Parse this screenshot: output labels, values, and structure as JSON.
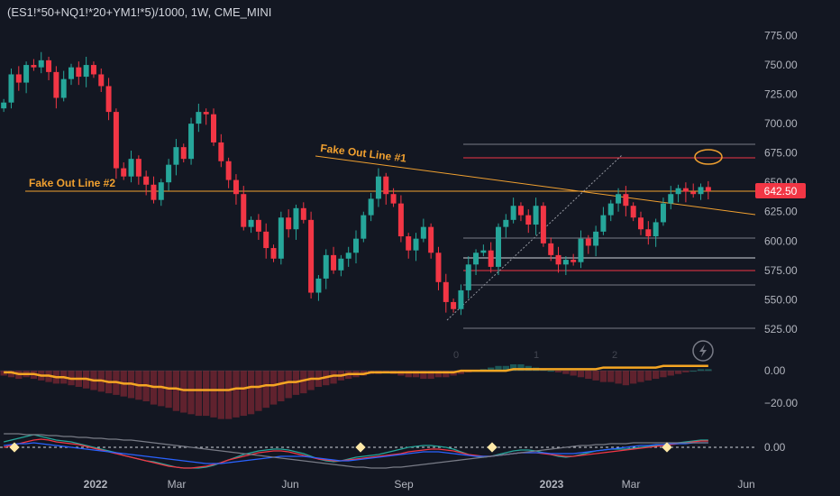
{
  "header": {
    "title": "(ES1!*50+NQ1!*20+YM1!*5)/1000, 1W, CME_MINI"
  },
  "colors": {
    "up": "#26a69a",
    "down": "#f23645",
    "bg": "#131722",
    "annot": "#f0a030",
    "axis": "#b2b5be",
    "price_badge": "#f23645"
  },
  "chart_data": [
    {
      "type": "candlestick",
      "title": "(ES1!*50+NQ1!*20+YM1!*5)/1000, 1W, CME_MINI",
      "yticks": [
        525,
        550,
        575,
        600,
        625,
        650,
        675,
        700,
        725,
        750,
        775
      ],
      "ytick_labels": [
        "525.00",
        "550.00",
        "575.00",
        "600.00",
        "625.00",
        "650.00",
        "675.00",
        "700.00",
        "725.00",
        "750.00",
        "775.00"
      ],
      "ylim": [
        498,
        790
      ],
      "xticks": [
        "2022",
        "Mar",
        "Jun",
        "Sep",
        "2023",
        "Mar",
        "Jun"
      ],
      "last_price": "642.50",
      "closes": [
        718,
        742,
        735,
        750,
        748,
        754,
        744,
        722,
        738,
        748,
        740,
        750,
        742,
        732,
        710,
        662,
        655,
        670,
        655,
        648,
        635,
        650,
        665,
        680,
        670,
        700,
        710,
        708,
        684,
        668,
        652,
        640,
        612,
        618,
        608,
        594,
        585,
        620,
        610,
        628,
        618,
        556,
        568,
        588,
        575,
        585,
        590,
        602,
        622,
        636,
        655,
        640,
        632,
        604,
        592,
        602,
        612,
        590,
        565,
        548,
        542,
        558,
        580,
        590,
        592,
        578,
        612,
        618,
        630,
        622,
        614,
        630,
        598,
        588,
        580,
        584,
        582,
        602,
        596,
        608,
        622,
        632,
        640,
        630,
        620,
        610,
        604,
        616,
        632,
        640,
        645,
        642,
        640,
        646,
        642.5
      ],
      "annotations": [
        "Fake Out Line #2",
        "Fake Out Line #1"
      ],
      "markers": [
        "0",
        "1",
        "2"
      ],
      "grid": false
    },
    {
      "type": "histogram",
      "yticks": [
        -20,
        0
      ],
      "ytick_labels": [
        "−20.00",
        "0.00"
      ],
      "ylim": [
        -33,
        4
      ],
      "values": [
        -3,
        -4,
        -5,
        -4,
        -5,
        -6,
        -7,
        -8,
        -8,
        -9,
        -10,
        -11,
        -12,
        -13,
        -14,
        -15,
        -16,
        -17,
        -18,
        -19,
        -21,
        -22,
        -23,
        -25,
        -26,
        -27,
        -28,
        -28,
        -29,
        -30,
        -30,
        -29,
        -28,
        -27,
        -25,
        -23,
        -21,
        -19,
        -17,
        -15,
        -14,
        -12,
        -10,
        -9,
        -8,
        -6,
        -5,
        -4,
        -3,
        -2,
        -2,
        -1,
        -2,
        -3,
        -4,
        -4,
        -5,
        -5,
        -4,
        -4,
        -3,
        -2,
        -1,
        0,
        1,
        2,
        3,
        3,
        4,
        4,
        3,
        2,
        1,
        0,
        -1,
        -2,
        -3,
        -4,
        -5,
        -6,
        -7,
        -7,
        -8,
        -9,
        -8,
        -7,
        -6,
        -5,
        -4,
        -3,
        -2,
        -1,
        0,
        1,
        1
      ],
      "signal_line": [
        -1,
        -1,
        -2,
        -2,
        -2,
        -3,
        -3,
        -4,
        -4,
        -5,
        -5,
        -5,
        -6,
        -6,
        -7,
        -7,
        -8,
        -8,
        -9,
        -9,
        -10,
        -10,
        -11,
        -11,
        -12,
        -12,
        -12,
        -12,
        -12,
        -12,
        -12,
        -11,
        -11,
        -10,
        -10,
        -9,
        -9,
        -8,
        -7,
        -7,
        -6,
        -5,
        -5,
        -4,
        -3,
        -3,
        -2,
        -2,
        -2,
        -1,
        -1,
        -1,
        -1,
        -1,
        -1,
        -1,
        -1,
        -1,
        -1,
        -1,
        -1,
        0,
        0,
        0,
        0,
        0,
        0,
        0,
        1,
        1,
        1,
        1,
        1,
        1,
        1,
        1,
        1,
        1,
        1,
        1,
        2,
        2,
        2,
        2,
        2,
        2,
        2,
        2,
        3,
        3,
        3,
        3,
        3,
        3,
        3
      ]
    },
    {
      "type": "line",
      "yticks": [
        0
      ],
      "ytick_labels": [
        "0.00"
      ],
      "ylim": [
        -2.4,
        2.4
      ],
      "series": [
        {
          "color": "#26a69a",
          "values": [
            0.6,
            0.8,
            1,
            1.2,
            1.4,
            1.2,
            1,
            0.8,
            0.7,
            0.6,
            0.4,
            0.2,
            0,
            -0.2,
            -0.4,
            -0.6,
            -0.9,
            -1.1,
            -1.3,
            -1.5,
            -1.6,
            -1.8,
            -2,
            -2.2,
            -2.3,
            -2.3,
            -2.3,
            -2.2,
            -2,
            -1.7,
            -1.4,
            -1.1,
            -0.8,
            -0.6,
            -0.4,
            -0.3,
            -0.2,
            -0.2,
            -0.3,
            -0.5,
            -0.7,
            -1,
            -1.3,
            -1.5,
            -1.6,
            -1.5,
            -1.3,
            -1.1,
            -1,
            -0.9,
            -0.8,
            -0.6,
            -0.4,
            -0.2,
            0,
            0.1,
            0.2,
            0.2,
            0.1,
            0,
            -0.2,
            -0.5,
            -0.8,
            -1,
            -1.1,
            -1,
            -0.8,
            -0.6,
            -0.4,
            -0.3,
            -0.3,
            -0.4,
            -0.6,
            -0.8,
            -1,
            -1.1,
            -1,
            -0.8,
            -0.6,
            -0.4,
            -0.3,
            -0.2,
            -0.2,
            -0.2,
            -0.1,
            0,
            0.1,
            0.2,
            0.3,
            0.4,
            0.5,
            0.6,
            0.7,
            0.8,
            0.8
          ]
        },
        {
          "color": "#f23645",
          "values": [
            0,
            0.2,
            0.4,
            0.6,
            0.8,
            0.9,
            0.8,
            0.6,
            0.5,
            0.4,
            0.3,
            0.1,
            -0.1,
            -0.3,
            -0.5,
            -0.7,
            -0.9,
            -1.1,
            -1.3,
            -1.5,
            -1.7,
            -1.9,
            -2.1,
            -2.2,
            -2.3,
            -2.3,
            -2.2,
            -2.1,
            -1.9,
            -1.7,
            -1.4,
            -1.2,
            -1,
            -0.8,
            -0.6,
            -0.5,
            -0.4,
            -0.4,
            -0.5,
            -0.7,
            -0.9,
            -1.1,
            -1.3,
            -1.4,
            -1.5,
            -1.5,
            -1.4,
            -1.3,
            -1.2,
            -1.1,
            -1,
            -0.9,
            -0.8,
            -0.7,
            -0.5,
            -0.4,
            -0.3,
            -0.2,
            -0.2,
            -0.3,
            -0.4,
            -0.6,
            -0.8,
            -0.9,
            -1,
            -1,
            -0.9,
            -0.8,
            -0.7,
            -0.6,
            -0.6,
            -0.6,
            -0.7,
            -0.8,
            -0.9,
            -1,
            -1,
            -0.9,
            -0.8,
            -0.7,
            -0.6,
            -0.5,
            -0.4,
            -0.3,
            -0.2,
            -0.1,
            0,
            0.1,
            0.2,
            0.3,
            0.4,
            0.5,
            0.6,
            0.7,
            0.7
          ]
        },
        {
          "color": "#2962ff",
          "values": [
            0.2,
            0.3,
            0.4,
            0.4,
            0.5,
            0.4,
            0.3,
            0.2,
            0.1,
            0,
            -0.1,
            -0.2,
            -0.3,
            -0.4,
            -0.5,
            -0.6,
            -0.7,
            -0.8,
            -0.9,
            -1,
            -1.1,
            -1.2,
            -1.3,
            -1.4,
            -1.5,
            -1.6,
            -1.7,
            -1.8,
            -1.8,
            -1.8,
            -1.7,
            -1.6,
            -1.5,
            -1.4,
            -1.3,
            -1.2,
            -1.1,
            -1,
            -1,
            -1,
            -1,
            -1.1,
            -1.2,
            -1.3,
            -1.4,
            -1.5,
            -1.5,
            -1.4,
            -1.3,
            -1.2,
            -1.1,
            -1,
            -0.9,
            -0.8,
            -0.7,
            -0.6,
            -0.5,
            -0.5,
            -0.5,
            -0.6,
            -0.7,
            -0.8,
            -0.9,
            -1,
            -1,
            -1,
            -0.9,
            -0.8,
            -0.7,
            -0.6,
            -0.6,
            -0.6,
            -0.6,
            -0.7,
            -0.7,
            -0.7,
            -0.7,
            -0.6,
            -0.5,
            -0.4,
            -0.3,
            -0.2,
            -0.1,
            0,
            0.1,
            0.2,
            0.2,
            0.3,
            0.3,
            0.4,
            0.4,
            0.4,
            0.5,
            0.5,
            0.5
          ]
        },
        {
          "color": "#787b86",
          "values": [
            1.5,
            1.5,
            1.5,
            1.4,
            1.4,
            1.4,
            1.3,
            1.3,
            1.2,
            1.2,
            1.1,
            1.1,
            1,
            1,
            0.9,
            0.9,
            0.8,
            0.8,
            0.7,
            0.6,
            0.5,
            0.4,
            0.3,
            0.2,
            0.1,
            0,
            -0.1,
            -0.2,
            -0.3,
            -0.4,
            -0.5,
            -0.6,
            -0.7,
            -0.8,
            -0.9,
            -1,
            -1.1,
            -1.2,
            -1.3,
            -1.4,
            -1.5,
            -1.6,
            -1.7,
            -1.8,
            -1.9,
            -2,
            -2.1,
            -2.2,
            -2.2,
            -2.3,
            -2.3,
            -2.3,
            -2.2,
            -2.2,
            -2.1,
            -2,
            -1.9,
            -1.8,
            -1.7,
            -1.6,
            -1.5,
            -1.4,
            -1.3,
            -1.2,
            -1.1,
            -1,
            -0.9,
            -0.8,
            -0.7,
            -0.6,
            -0.5,
            -0.4,
            -0.3,
            -0.2,
            -0.1,
            0,
            0.1,
            0.2,
            0.2,
            0.3,
            0.3,
            0.4,
            0.4,
            0.4,
            0.5,
            0.5,
            0.5,
            0.5,
            0.5,
            0.5,
            0.5,
            0.5,
            0.5,
            0.5,
            0.5
          ]
        }
      ]
    }
  ]
}
